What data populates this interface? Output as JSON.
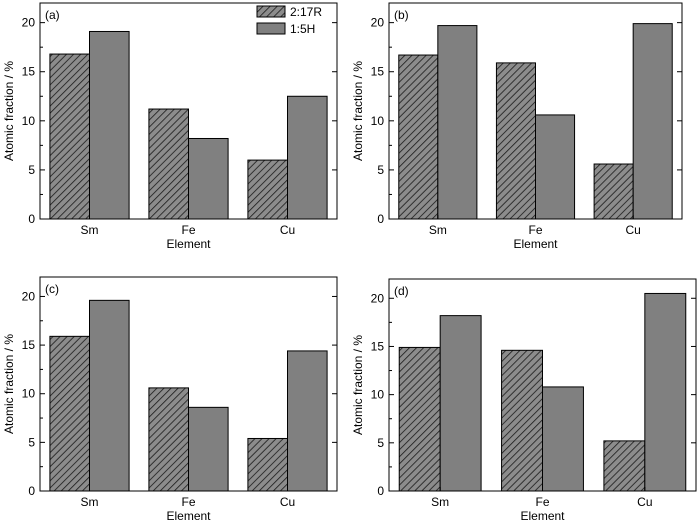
{
  "legend": {
    "items": [
      {
        "label": "2:17R",
        "pattern": "hatch"
      },
      {
        "label": "1:5H",
        "pattern": "solid"
      }
    ],
    "placement": "top-right of panel (a)"
  },
  "colors": {
    "solid_bar": "#808080",
    "hatch_bg": "#8c8c8c",
    "hatch_line": "#1a1a1a",
    "axes": "#000000"
  },
  "chart_data": [
    {
      "type": "bar",
      "panel_label": "(a)",
      "categories": [
        "Sm",
        "Fe",
        "Cu"
      ],
      "series": [
        {
          "name": "2:17R",
          "values": [
            16.8,
            11.2,
            6.0
          ]
        },
        {
          "name": "1:5H",
          "values": [
            19.1,
            8.2,
            12.5
          ]
        }
      ],
      "xlabel": "Element",
      "ylabel": "Atomic fraction / %",
      "ylim": [
        0,
        22
      ],
      "yticks": [
        0,
        5,
        10,
        15,
        20
      ],
      "show_legend": true
    },
    {
      "type": "bar",
      "panel_label": "(b)",
      "categories": [
        "Sm",
        "Fe",
        "Cu"
      ],
      "series": [
        {
          "name": "2:17R",
          "values": [
            16.7,
            15.9,
            5.6
          ]
        },
        {
          "name": "1:5H",
          "values": [
            19.7,
            10.6,
            19.9
          ]
        }
      ],
      "xlabel": "Element",
      "ylabel": "Atomic fraction / %",
      "ylim": [
        0,
        22
      ],
      "yticks": [
        0,
        5,
        10,
        15,
        20
      ],
      "show_legend": false
    },
    {
      "type": "bar",
      "panel_label": "(c)",
      "categories": [
        "Sm",
        "Fe",
        "Cu"
      ],
      "series": [
        {
          "name": "2:17R",
          "values": [
            15.9,
            10.6,
            5.4
          ]
        },
        {
          "name": "1:5H",
          "values": [
            19.6,
            8.6,
            14.4
          ]
        }
      ],
      "xlabel": "Element",
      "ylabel": "Atomic fraction / %",
      "ylim": [
        0,
        22
      ],
      "yticks": [
        0,
        5,
        10,
        15,
        20
      ],
      "show_legend": false
    },
    {
      "type": "bar",
      "panel_label": "(d)",
      "categories": [
        "Sm",
        "Fe",
        "Cu"
      ],
      "series": [
        {
          "name": "2:17R",
          "values": [
            14.9,
            14.6,
            5.2
          ]
        },
        {
          "name": "1:5H",
          "values": [
            18.2,
            10.8,
            20.5
          ]
        }
      ],
      "xlabel": "Element",
      "ylabel": "Atomic fraction / %",
      "ylim": [
        0,
        22
      ],
      "yticks": [
        0,
        5,
        10,
        15,
        20
      ],
      "show_legend": false
    }
  ]
}
